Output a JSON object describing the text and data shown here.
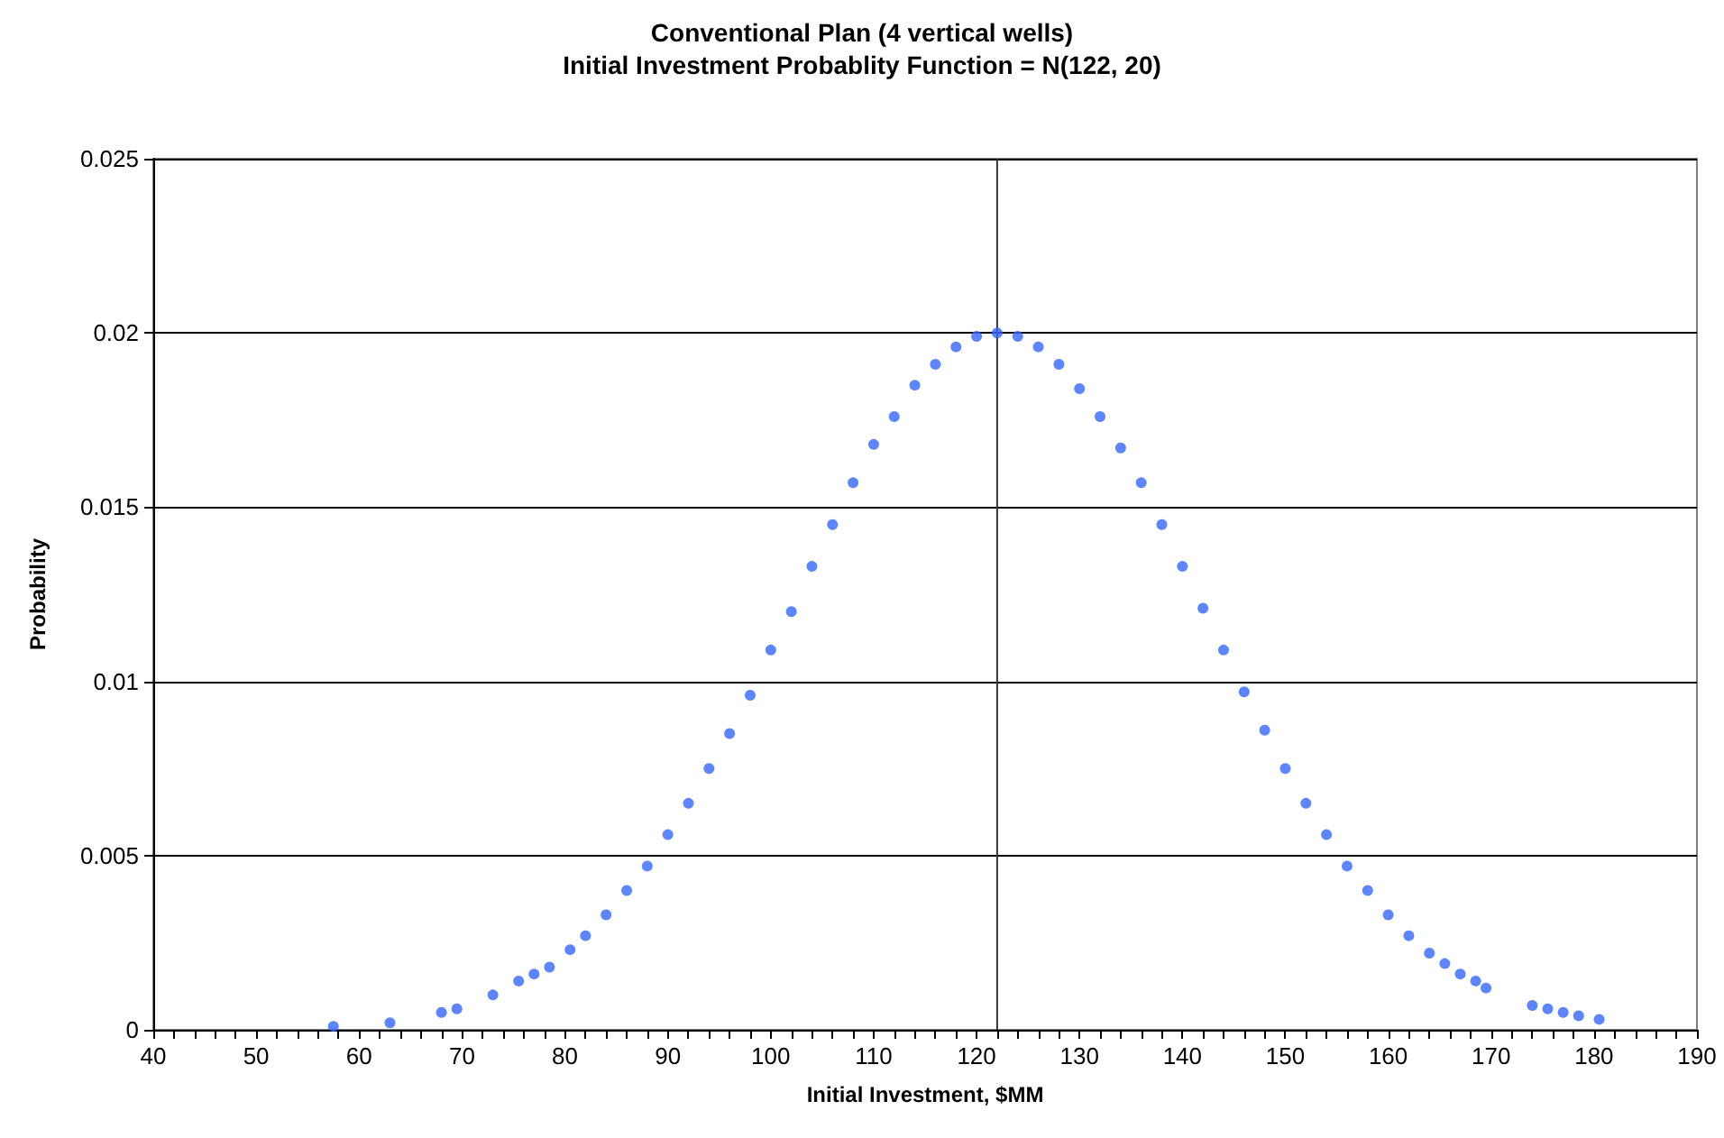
{
  "chart_data": {
    "type": "scatter",
    "title": "Conventional Plan (4 vertical wells)",
    "subtitle": "Initial Investment Probablity Function = N(122, 20)",
    "xlabel": "Initial Investment, $MM",
    "ylabel": "Probability",
    "x": [
      57.5,
      63,
      68,
      69.5,
      73,
      75.5,
      77,
      78.5,
      80.5,
      82,
      84,
      86,
      88,
      90,
      92,
      94,
      96,
      98,
      100,
      102,
      104,
      106,
      108,
      110,
      112,
      114,
      116,
      118,
      120,
      122,
      124,
      126,
      128,
      130,
      132,
      134,
      136,
      138,
      140,
      142,
      144,
      146,
      148,
      150,
      152,
      154,
      156,
      158,
      160,
      162,
      164,
      165.5,
      167,
      168.5,
      169.5,
      174,
      175.5,
      177,
      178.5,
      180.5
    ],
    "series": [
      {
        "color": "#3366ff",
        "values": [
          0.0001,
          0.0002,
          0.0005,
          0.0006,
          0.001,
          0.0014,
          0.0016,
          0.0018,
          0.0023,
          0.0027,
          0.0033,
          0.004,
          0.0047,
          0.0056,
          0.0065,
          0.0075,
          0.0085,
          0.0096,
          0.0109,
          0.012,
          0.0133,
          0.0145,
          0.0157,
          0.0168,
          0.0176,
          0.0185,
          0.0191,
          0.0196,
          0.0199,
          0.02,
          0.0199,
          0.0196,
          0.0191,
          0.0184,
          0.0176,
          0.0167,
          0.0157,
          0.0145,
          0.0133,
          0.0121,
          0.0109,
          0.0097,
          0.0086,
          0.0075,
          0.0065,
          0.0056,
          0.0047,
          0.004,
          0.0033,
          0.0027,
          0.0022,
          0.0019,
          0.0016,
          0.0014,
          0.0012,
          0.0007,
          0.0006,
          0.0005,
          0.0004,
          0.0003
        ]
      }
    ],
    "xlim": [
      40,
      190
    ],
    "xticks": [
      40,
      {
        "value": 42,
        "label": null
      },
      {
        "value": 44,
        "label": null
      },
      {
        "value": 46,
        "label": null
      },
      {
        "value": 48,
        "label": null
      },
      50,
      {
        "value": 52,
        "label": null
      },
      {
        "value": 54,
        "label": null
      },
      {
        "value": 56,
        "label": null
      },
      {
        "value": 58,
        "label": null
      },
      60,
      {
        "value": 62,
        "label": null
      },
      {
        "value": 64,
        "label": null
      },
      {
        "value": 66,
        "label": null
      },
      {
        "value": 68,
        "label": null
      },
      70,
      {
        "value": 72,
        "label": null
      },
      {
        "value": 74,
        "label": null
      },
      {
        "value": 76,
        "label": null
      },
      {
        "value": 78,
        "label": null
      },
      80,
      {
        "value": 82,
        "label": null
      },
      {
        "value": 84,
        "label": null
      },
      {
        "value": 86,
        "label": null
      },
      {
        "value": 88,
        "label": null
      },
      90,
      {
        "value": 92,
        "label": null
      },
      {
        "value": 94,
        "label": null
      },
      {
        "value": 96,
        "label": null
      },
      {
        "value": 98,
        "label": null
      },
      100,
      {
        "value": 102,
        "label": null
      },
      {
        "value": 104,
        "label": null
      },
      {
        "value": 106,
        "label": null
      },
      {
        "value": 108,
        "label": null
      },
      110,
      {
        "value": 112,
        "label": null
      },
      {
        "value": 114,
        "label": null
      },
      {
        "value": 116,
        "label": null
      },
      {
        "value": 118,
        "label": null
      },
      120,
      {
        "value": 122,
        "label": null
      },
      {
        "value": 124,
        "label": null
      },
      {
        "value": 126,
        "label": null
      },
      {
        "value": 128,
        "label": null
      },
      130,
      {
        "value": 132,
        "label": null
      },
      {
        "value": 134,
        "label": null
      },
      {
        "value": 136,
        "label": null
      },
      {
        "value": 138,
        "label": null
      },
      140,
      {
        "value": 142,
        "label": null
      },
      {
        "value": 144,
        "label": null
      },
      {
        "value": 146,
        "label": null
      },
      {
        "value": 148,
        "label": null
      },
      150,
      {
        "value": 152,
        "label": null
      },
      {
        "value": 154,
        "label": null
      },
      {
        "value": 156,
        "label": null
      },
      {
        "value": 158,
        "label": null
      },
      160,
      {
        "value": 162,
        "label": null
      },
      {
        "value": 164,
        "label": null
      },
      {
        "value": 166,
        "label": null
      },
      {
        "value": 168,
        "label": null
      },
      170,
      {
        "value": 172,
        "label": null
      },
      {
        "value": 174,
        "label": null
      },
      {
        "value": 176,
        "label": null
      },
      {
        "value": 178,
        "label": null
      },
      180,
      {
        "value": 182,
        "label": null
      },
      {
        "value": 184,
        "label": null
      },
      {
        "value": 186,
        "label": null
      },
      {
        "value": 188,
        "label": null
      },
      190
    ],
    "ylim": [
      0,
      0.025
    ],
    "yticks": [
      0,
      0.005,
      0.01,
      0.015,
      0.02,
      0.025
    ],
    "grid": "y",
    "marker": "circle",
    "legend": false,
    "ref_lines": [
      {
        "axis": "x",
        "value": 122,
        "color": "#333333"
      }
    ]
  }
}
